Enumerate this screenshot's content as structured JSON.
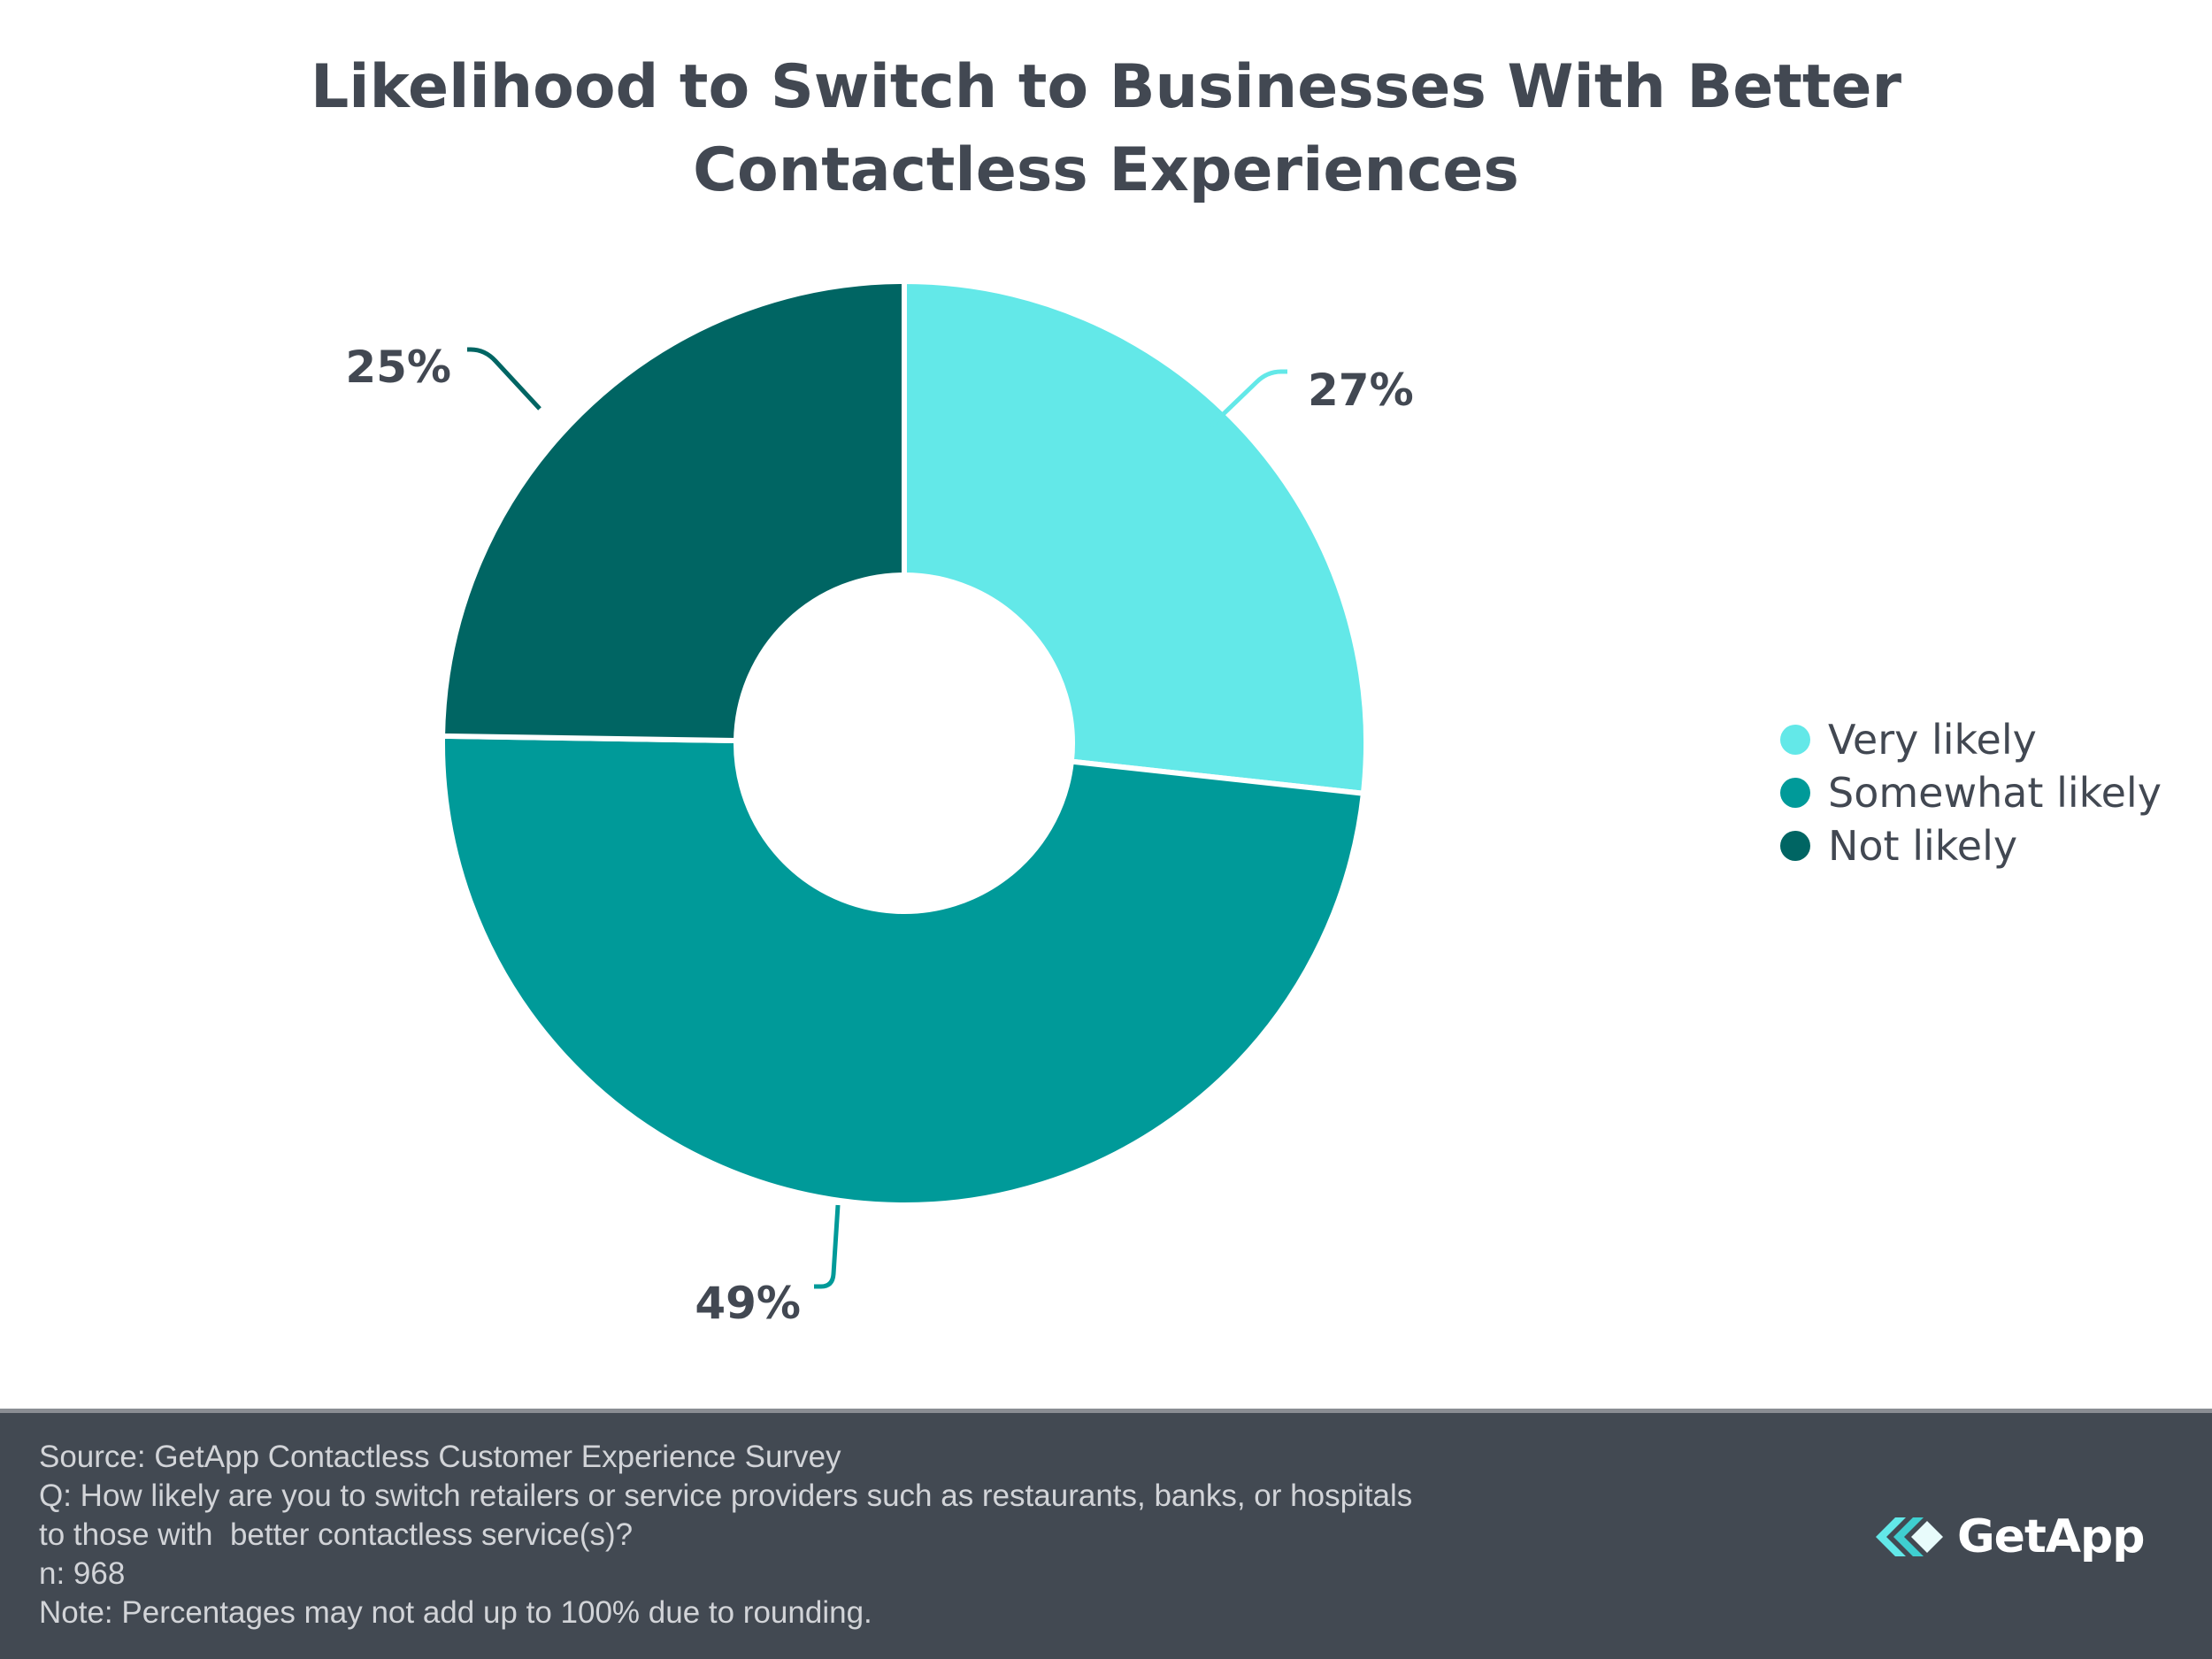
{
  "chart_data": {
    "type": "pie",
    "title_lines": [
      "Likelihood to Switch to Businesses With Better",
      "Contactless Experiences"
    ],
    "slices": [
      {
        "label": "Very likely",
        "value": 27,
        "display": "27%",
        "color": "#63e8e8"
      },
      {
        "label": "Somewhat likely",
        "value": 49,
        "display": "49%",
        "color": "#009a99"
      },
      {
        "label": "Not likely",
        "value": 25,
        "display": "25%",
        "color": "#006563"
      }
    ],
    "legend_position": "right"
  },
  "footer": {
    "lines": [
      "Source: GetApp Contactless Customer Experience Survey",
      "Q: How likely are you to switch retailers or service providers such as restaurants, banks, or hospitals",
      "to those with  better contactless service(s)?",
      "n: 968",
      "Note: Percentages may not add up to 100% due to rounding."
    ],
    "logo_text": "GetApp",
    "label_color": "#424852"
  }
}
